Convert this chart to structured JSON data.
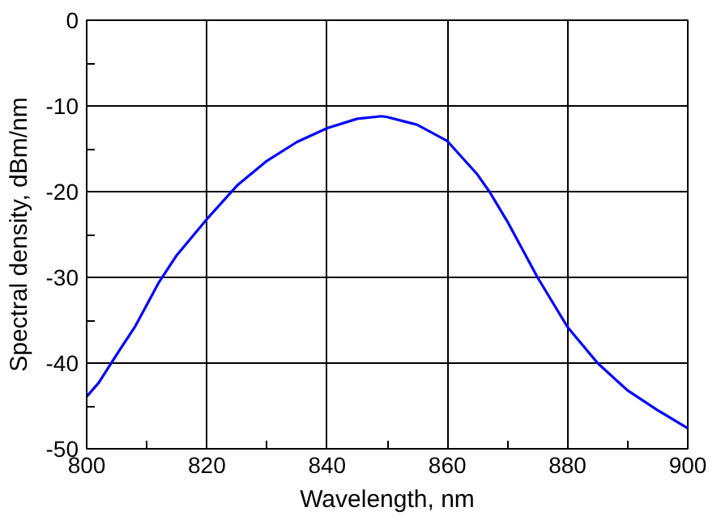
{
  "chart_data": {
    "type": "line",
    "xlabel": "Wavelength, nm",
    "ylabel": "Spectral density, dBm/nm",
    "x": [
      800,
      802,
      805,
      808,
      810,
      812,
      815,
      820,
      825,
      830,
      835,
      840,
      845,
      849,
      850,
      855,
      860,
      865,
      867,
      870,
      875,
      880,
      885,
      890,
      895,
      900
    ],
    "series": [
      {
        "color": "#0000ff",
        "values": [
          -43.9,
          -42.3,
          -39,
          -35.8,
          -33.2,
          -30.6,
          -27.4,
          -23.2,
          -19.3,
          -16.4,
          -14.2,
          -12.6,
          -11.5,
          -11.2,
          -11.3,
          -12.2,
          -14.1,
          -18,
          -20,
          -23.5,
          -30,
          -35.8,
          -40,
          -43.2,
          -45.5,
          -47.6
        ]
      }
    ],
    "xlim": [
      800,
      900
    ],
    "ylim": [
      -50,
      0
    ],
    "xticks": [
      800,
      {
        "value": 810,
        "label": null
      },
      820,
      {
        "value": 830,
        "label": null
      },
      840,
      {
        "value": 850,
        "label": null
      },
      860,
      {
        "value": 870,
        "label": null
      },
      880,
      {
        "value": 890,
        "label": null
      },
      900
    ],
    "yticks": [
      -50,
      {
        "value": -45,
        "label": null
      },
      -40,
      {
        "value": -35,
        "label": null
      },
      -30,
      {
        "value": -25,
        "label": null
      },
      -20,
      {
        "value": -15,
        "label": null
      },
      -10,
      {
        "value": -5,
        "label": null
      },
      0
    ],
    "grid": true,
    "marker": "none",
    "line_style": "solid"
  }
}
